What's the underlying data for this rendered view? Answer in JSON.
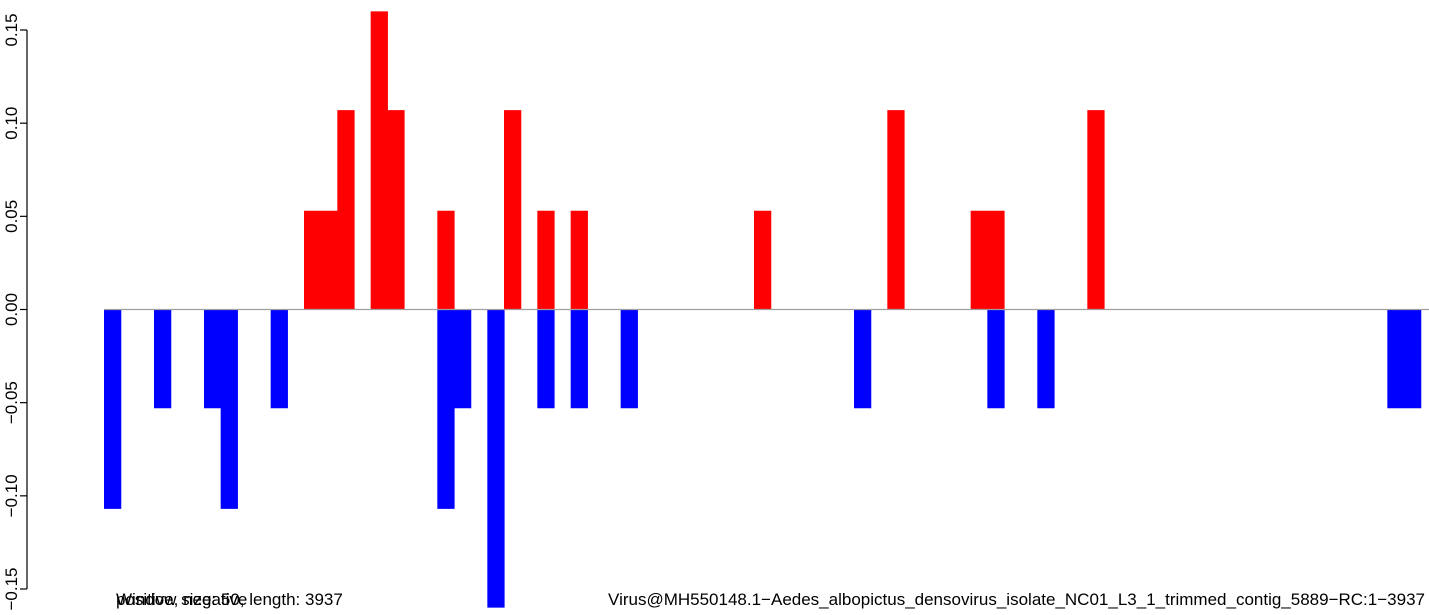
{
  "chart_data": {
    "type": "bar",
    "title": "",
    "xlabel": "",
    "ylabel": "",
    "ylim": [
      -0.15,
      0.16
    ],
    "yticks": [
      "-0.15",
      "-0.10",
      "-0.05",
      "0.00",
      "0.05",
      "0.10",
      "0.15"
    ],
    "ytick_values": [
      -0.15,
      -0.1,
      -0.05,
      0.0,
      0.05,
      0.1,
      0.15
    ],
    "xlim": [
      1,
      3937
    ],
    "grid": false,
    "baseline": 0,
    "colors": {
      "positive": "#ff0000",
      "negative": "#0000ff",
      "baseline": "#a0a0a0",
      "axis": "#000000"
    },
    "series": [
      {
        "name": "positive",
        "bins": [
          {
            "x": 601,
            "value": 0.053
          },
          {
            "x": 651,
            "value": 0.053
          },
          {
            "x": 701,
            "value": 0.107
          },
          {
            "x": 801,
            "value": 0.16
          },
          {
            "x": 851,
            "value": 0.107
          },
          {
            "x": 1001,
            "value": 0.053
          },
          {
            "x": 1201,
            "value": 0.107
          },
          {
            "x": 1301,
            "value": 0.053
          },
          {
            "x": 1401,
            "value": 0.053
          },
          {
            "x": 1951,
            "value": 0.053
          },
          {
            "x": 2351,
            "value": 0.107
          },
          {
            "x": 2601,
            "value": 0.053
          },
          {
            "x": 2651,
            "value": 0.053
          },
          {
            "x": 2951,
            "value": 0.107
          }
        ]
      },
      {
        "name": "negative",
        "bins": [
          {
            "x": 1,
            "value": -0.107
          },
          {
            "x": 151,
            "value": -0.053
          },
          {
            "x": 301,
            "value": -0.053
          },
          {
            "x": 351,
            "value": -0.107
          },
          {
            "x": 501,
            "value": -0.053
          },
          {
            "x": 1001,
            "value": -0.107
          },
          {
            "x": 1051,
            "value": -0.053
          },
          {
            "x": 1151,
            "value": -0.16
          },
          {
            "x": 1301,
            "value": -0.053
          },
          {
            "x": 1401,
            "value": -0.053
          },
          {
            "x": 1551,
            "value": -0.053
          },
          {
            "x": 2251,
            "value": -0.053
          },
          {
            "x": 2651,
            "value": -0.053
          },
          {
            "x": 2801,
            "value": -0.053
          },
          {
            "x": 3851,
            "value": -0.053
          },
          {
            "x": 3901,
            "value": -0.053
          }
        ]
      }
    ],
    "captions": [
      "positive, negative",
      "Window size: 50, length: 3937",
      "Virus@MH550148.1−Aedes_albopictus_densovirus_isolate_NC01_L3_1_trimmed_contig_5889−RC:1−3937"
    ]
  }
}
